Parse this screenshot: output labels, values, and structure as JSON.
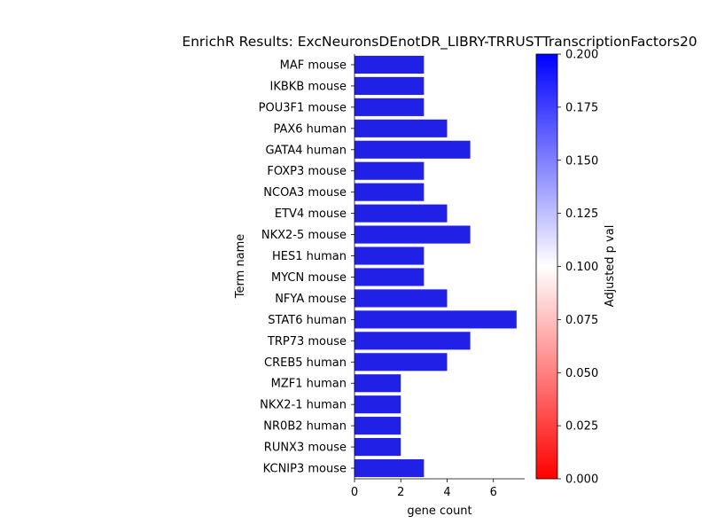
{
  "chart_data": {
    "type": "bar",
    "orientation": "horizontal",
    "title": "EnrichR Results: ExcNeuronsDEnotDR_LIBRY-TRRUSTTranscriptionFactors20",
    "xlabel": "gene count",
    "ylabel": "Term name",
    "xlim": [
      0,
      7.35
    ],
    "xticks": [
      0,
      2,
      4,
      6
    ],
    "categories": [
      "MAF mouse",
      "IKBKB mouse",
      "POU3F1 mouse",
      "PAX6 human",
      "GATA4 human",
      "FOXP3 mouse",
      "NCOA3 mouse",
      "ETV4 mouse",
      "NKX2-5 mouse",
      "HES1 human",
      "MYCN mouse",
      "NFYA mouse",
      "STAT6 human",
      "TRP73 mouse",
      "CREB5 human",
      "MZF1 human",
      "NKX2-1 human",
      "NR0B2 human",
      "RUNX3 mouse",
      "KCNIP3 mouse"
    ],
    "values": [
      3,
      3,
      3,
      4,
      5,
      3,
      3,
      4,
      5,
      3,
      3,
      4,
      7,
      5,
      4,
      2,
      2,
      2,
      2,
      3
    ],
    "bar_color": "#2020e6",
    "colorbar": {
      "label": "Adjusted p val",
      "range": [
        0.0,
        0.2
      ],
      "ticks": [
        "0.000",
        "0.025",
        "0.050",
        "0.075",
        "0.100",
        "0.125",
        "0.150",
        "0.175",
        "0.200"
      ],
      "colormap": [
        "#ff0000",
        "#ffffff",
        "#0000ff"
      ]
    },
    "legend": "none",
    "grid": false
  }
}
